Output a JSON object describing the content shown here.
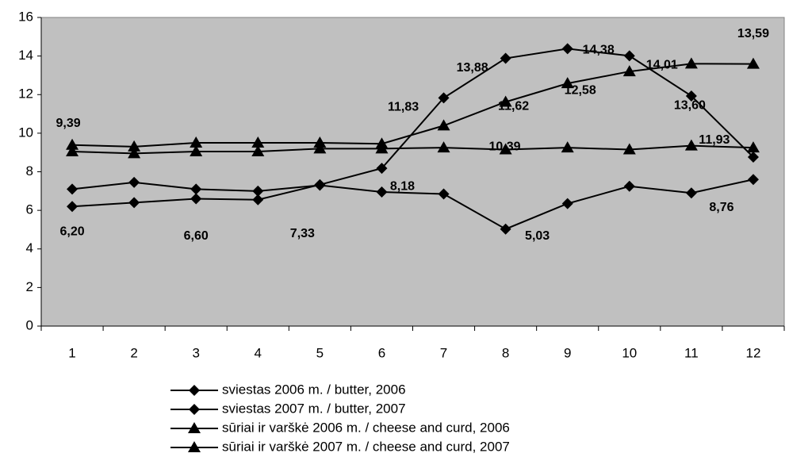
{
  "chart_data": {
    "type": "line",
    "categories": [
      "1",
      "2",
      "3",
      "4",
      "5",
      "6",
      "7",
      "8",
      "9",
      "10",
      "11",
      "12"
    ],
    "ylim": [
      0,
      16
    ],
    "yticks": [
      0,
      2,
      4,
      6,
      8,
      10,
      12,
      14,
      16
    ],
    "background": "#c0c0c0",
    "series": [
      {
        "name": "sviestas 2006 m. / butter, 2006",
        "color": "#000000",
        "marker": "diamond",
        "values": [
          6.2,
          6.4,
          6.6,
          6.55,
          7.33,
          8.18,
          11.83,
          13.88,
          14.38,
          14.01,
          11.93,
          8.76
        ],
        "value_labels": [
          "6,20",
          null,
          "6,60",
          null,
          "7,33",
          "8,18",
          "11,83",
          "13,88",
          "14,38",
          "14,01",
          "11,93",
          "8,76"
        ]
      },
      {
        "name": "sviestas 2007 m. / butter, 2007",
        "color": "#000000",
        "marker": "diamond",
        "values": [
          7.1,
          7.45,
          7.1,
          7.0,
          7.3,
          6.95,
          6.85,
          5.03,
          6.35,
          7.25,
          6.9,
          7.6
        ],
        "value_labels": [
          null,
          null,
          null,
          null,
          null,
          null,
          null,
          "5,03",
          null,
          null,
          null,
          null
        ]
      },
      {
        "name": "sūriai ir varškė 2006 m. / cheese and curd, 2006",
        "color": "#000000",
        "marker": "triangle",
        "values": [
          9.39,
          9.3,
          9.5,
          9.5,
          9.5,
          9.45,
          10.39,
          11.62,
          12.58,
          13.2,
          13.6,
          13.59
        ],
        "value_labels": [
          "9,39",
          null,
          null,
          null,
          null,
          null,
          "10,39",
          "11,62",
          "12,58",
          null,
          "13,60",
          "13,59"
        ]
      },
      {
        "name": "sūriai ir varškė 2007 m. / cheese and curd, 2007",
        "color": "#000000",
        "marker": "triangle",
        "values": [
          9.05,
          8.95,
          9.05,
          9.05,
          9.2,
          9.2,
          9.25,
          9.15,
          9.25,
          9.15,
          9.35,
          9.25
        ],
        "value_labels": [
          null,
          null,
          null,
          null,
          null,
          null,
          null,
          null,
          null,
          null,
          null,
          null
        ]
      }
    ]
  }
}
